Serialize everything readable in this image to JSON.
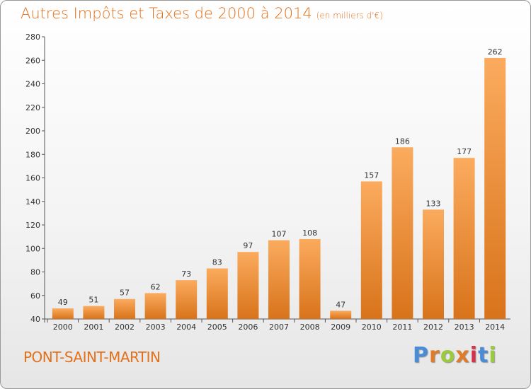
{
  "header": {
    "title": "Autres Impôts et Taxes de 2000 à 2014",
    "unit": "(en milliers d'€)"
  },
  "footer": {
    "town": "PONT-SAINT-MARTIN",
    "logo": "Proxiti"
  },
  "colors": {
    "accent": "#e3701a",
    "bar_light": "#f9a455",
    "bar_dark": "#d9741a",
    "logo_letters": [
      "#4b8cd6",
      "#e07b2a",
      "#9acb3c",
      "#e07b2a",
      "#d6314a",
      "#4b8cd6",
      "#9acb3c"
    ]
  },
  "chart_data": {
    "type": "bar",
    "title": "Autres Impôts et Taxes de 2000 à 2014",
    "subtitle": "(en milliers d'€)",
    "categories": [
      "2000",
      "2001",
      "2002",
      "2003",
      "2004",
      "2005",
      "2006",
      "2007",
      "2008",
      "2009",
      "2010",
      "2011",
      "2012",
      "2013",
      "2014"
    ],
    "values": [
      49,
      51,
      57,
      62,
      73,
      83,
      97,
      107,
      108,
      47,
      157,
      186,
      133,
      177,
      262
    ],
    "ylim": [
      40,
      280
    ],
    "yticks": [
      40,
      60,
      80,
      100,
      120,
      140,
      160,
      180,
      200,
      220,
      240,
      260,
      280
    ],
    "grid": false,
    "legend": "none"
  }
}
